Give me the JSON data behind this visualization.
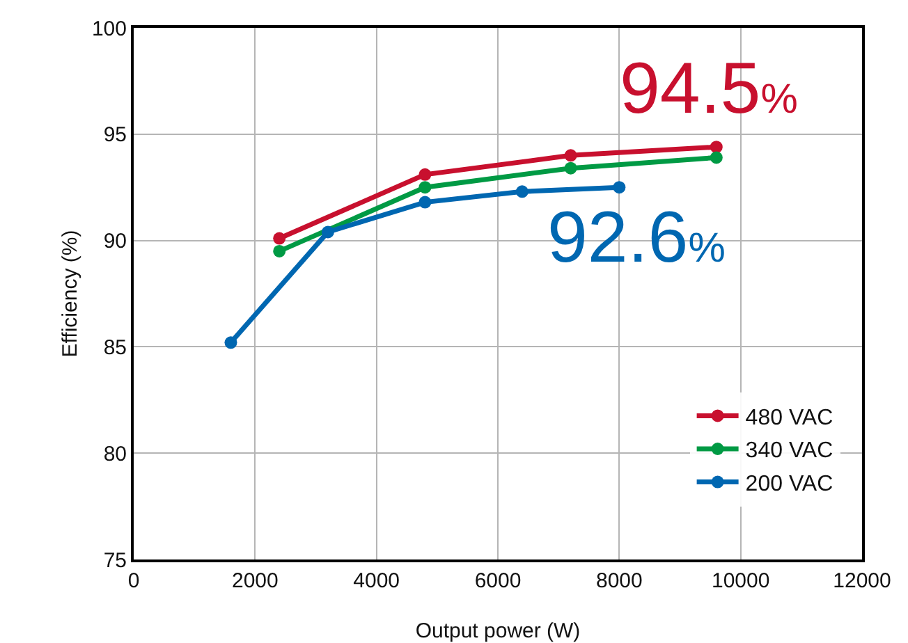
{
  "chart_data": {
    "type": "line",
    "xlabel": "Output power (W)",
    "ylabel": "Efficiency (%)",
    "xlim": [
      0,
      12000
    ],
    "xticks": [
      0,
      2000,
      4000,
      6000,
      8000,
      10000,
      12000
    ],
    "ylim": [
      75,
      100
    ],
    "yticks": [
      75,
      80,
      85,
      90,
      95,
      100
    ],
    "grid": true,
    "legend": "bottom right",
    "marker": "circle",
    "line_style": "solid",
    "series": [
      {
        "name": "480 VAC",
        "color": "#c8102e",
        "x": [
          2400,
          4800,
          7200,
          9600
        ],
        "values": [
          90.1,
          93.1,
          94.0,
          94.4
        ]
      },
      {
        "name": "340 VAC",
        "color": "#009a44",
        "x": [
          2400,
          4800,
          7200,
          9600
        ],
        "values": [
          89.5,
          92.5,
          93.4,
          93.9
        ]
      },
      {
        "name": "200 VAC",
        "color": "#0067b1",
        "x": [
          1600,
          3200,
          4800,
          6400,
          8000
        ],
        "values": [
          85.2,
          90.4,
          91.8,
          92.3,
          92.5
        ]
      }
    ],
    "annotations": [
      "94.5%",
      "92.6%"
    ]
  }
}
